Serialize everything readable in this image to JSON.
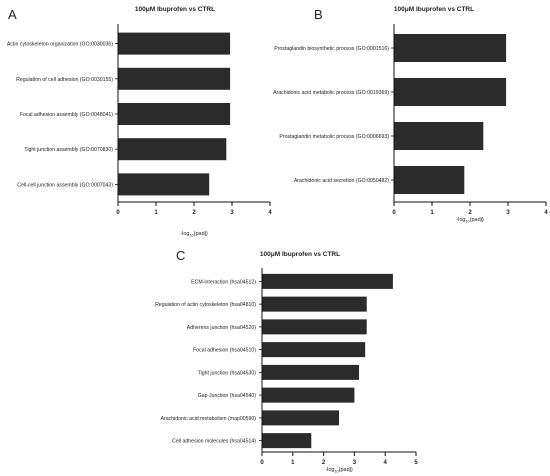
{
  "colors": {
    "bar": "#2b2b2b",
    "axis": "#111111",
    "text": "#222222",
    "background": "#ffffff"
  },
  "chart_data": [
    {
      "panel_label": "A",
      "type": "bar",
      "orientation": "horizontal",
      "title": "100μM Ibuprofen vs CTRL",
      "xlabel_base": "-log",
      "xlabel_sub": "10",
      "xlabel_tail": "(padj)",
      "xlim": [
        0,
        4
      ],
      "xticks": [
        "0",
        "1",
        "2",
        "3",
        "4"
      ],
      "grid": false,
      "categories": [
        "Actin cytoskeleton organization (GO:0030036)",
        "Regulation of cell adhesion (GO:0030155)",
        "Focal adhesion assembly (GO:0048041)",
        "Tight junction assembly (GO:0070830)",
        "Cell-cell junction assembly (GO:0007043)"
      ],
      "values": [
        2.95,
        2.95,
        2.95,
        2.85,
        2.4
      ]
    },
    {
      "panel_label": "B",
      "type": "bar",
      "orientation": "horizontal",
      "title": "100μM Ibuprofen vs CTRL",
      "xlabel_base": "-log",
      "xlabel_sub": "10",
      "xlabel_tail": "(padj)",
      "xlim": [
        0,
        4
      ],
      "xticks": [
        "0",
        "1",
        "2",
        "3",
        "4"
      ],
      "grid": false,
      "categories": [
        "Prostaglandin biosynthetic process (GO:0001516)",
        "Arachidonic acid metabolic process (GO:0019369)",
        "Prostaglandin metabolic process (GO:0006693)",
        "Arachidonic acid secretion (GO:0050482)"
      ],
      "values": [
        2.95,
        2.95,
        2.35,
        1.85
      ]
    },
    {
      "panel_label": "C",
      "type": "bar",
      "orientation": "horizontal",
      "title": "100μM Ibuprofen vs CTRL",
      "xlabel_base": "-log",
      "xlabel_sub": "10",
      "xlabel_tail": "(padj)",
      "xlim": [
        0,
        5
      ],
      "xticks": [
        "0",
        "1",
        "2",
        "3",
        "4",
        "5"
      ],
      "grid": false,
      "categories": [
        "ECM-interaction (hsa04512)",
        "Regulation of actin cytoskeleton (hsa04810)",
        "Adherens junction (hsa04520)",
        "Focal adhesion (hsa04510)",
        "Tight junction (hsa04530)",
        "Gap Junction (hsa04540)",
        "Arachidonic acid metabolism (map00590)",
        "Cell adhesion molecules (hsa04514)"
      ],
      "values": [
        4.25,
        3.4,
        3.4,
        3.35,
        3.15,
        3.0,
        2.5,
        1.6
      ]
    }
  ]
}
